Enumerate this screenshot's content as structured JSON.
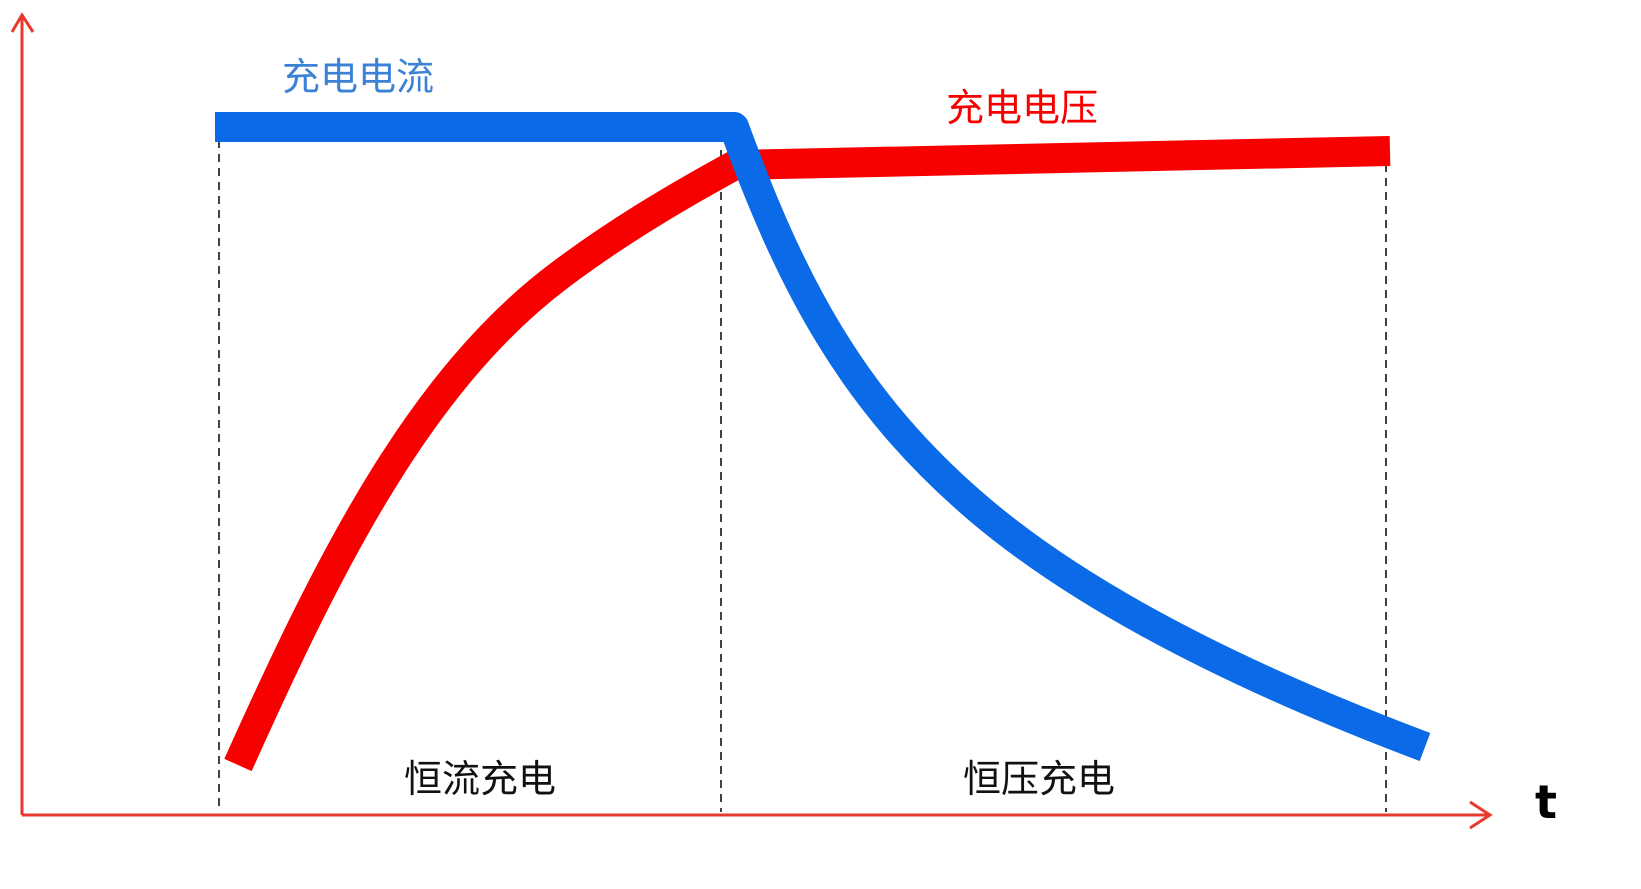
{
  "colors": {
    "axis": "#e8392f",
    "current": "#0a6ae8",
    "current_label": "#3b82d6",
    "voltage": "#f80000",
    "guide": "#111111"
  },
  "labels": {
    "current": "充电电流",
    "voltage": "充电电压",
    "phase_constant_current": "恒流充电",
    "phase_constant_voltage": "恒压充电",
    "x_axis": "t"
  },
  "chart_data": {
    "type": "line",
    "x_axis_label": "t",
    "y_axis_label": "",
    "series": [
      {
        "name": "充电电流",
        "points": [
          [
            0.0,
            1.0
          ],
          [
            1.0,
            1.0
          ],
          [
            1.12,
            0.75
          ],
          [
            1.35,
            0.52
          ],
          [
            1.75,
            0.34
          ],
          [
            2.3,
            0.16
          ],
          [
            2.43,
            0.12
          ]
        ]
      },
      {
        "name": "充电电压",
        "points": [
          [
            0.0,
            0.0
          ],
          [
            0.3,
            0.45
          ],
          [
            0.6,
            0.78
          ],
          [
            1.0,
            0.95
          ],
          [
            1.1,
            0.96
          ],
          [
            2.33,
            0.96
          ]
        ]
      }
    ],
    "phases": [
      {
        "name": "恒流充电",
        "x_range": [
          0.0,
          1.0
        ]
      },
      {
        "name": "恒压充电",
        "x_range": [
          1.0,
          2.33
        ]
      }
    ],
    "grid": false,
    "legend": "none"
  }
}
